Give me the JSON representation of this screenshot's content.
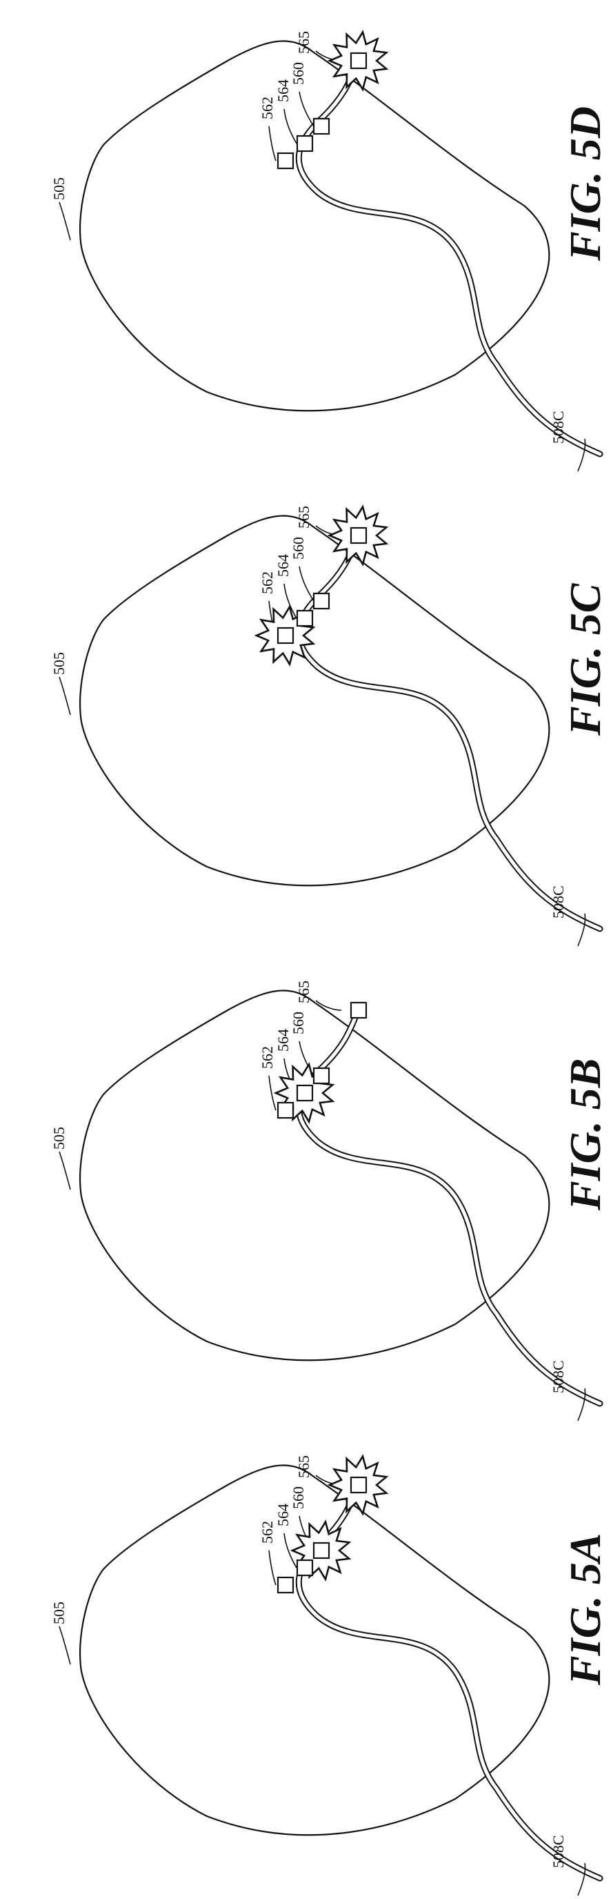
{
  "figures": [
    {
      "label": "FIG. 5A",
      "refs": {
        "lead": "508C",
        "chamber": "505",
        "e562": "562",
        "e564": "564",
        "e560": "560",
        "e565": "565"
      },
      "active": [
        "560",
        "565"
      ]
    },
    {
      "label": "FIG. 5B",
      "refs": {
        "lead": "508C",
        "chamber": "505",
        "e562": "562",
        "e564": "564",
        "e560": "560",
        "e565": "565"
      },
      "active": [
        "564"
      ]
    },
    {
      "label": "FIG. 5C",
      "refs": {
        "lead": "508C",
        "chamber": "505",
        "e562": "562",
        "e564": "564",
        "e560": "560",
        "e565": "565"
      },
      "active": [
        "562",
        "565"
      ]
    },
    {
      "label": "FIG. 5D",
      "refs": {
        "lead": "508C",
        "chamber": "505",
        "e562": "562",
        "e564": "564",
        "e560": "560",
        "e565": "565"
      },
      "active": [
        "565"
      ]
    }
  ]
}
